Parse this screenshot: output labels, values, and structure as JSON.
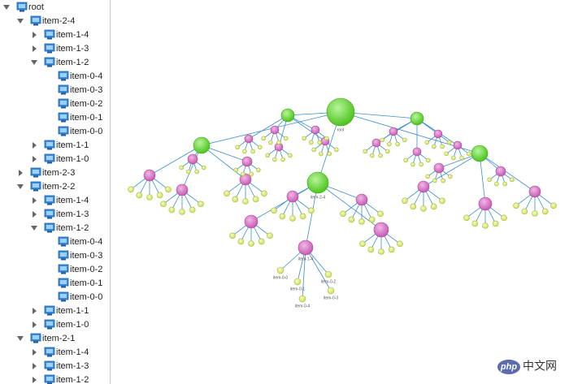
{
  "tree": {
    "rows": [
      {
        "label": "root",
        "level": 0,
        "state": "expanded"
      },
      {
        "label": "item-2-4",
        "level": 1,
        "state": "expanded"
      },
      {
        "label": "item-1-4",
        "level": 2,
        "state": "collapsed"
      },
      {
        "label": "item-1-3",
        "level": 2,
        "state": "collapsed"
      },
      {
        "label": "item-1-2",
        "level": 2,
        "state": "expanded"
      },
      {
        "label": "item-0-4",
        "level": 3,
        "state": "leaf"
      },
      {
        "label": "item-0-3",
        "level": 3,
        "state": "leaf"
      },
      {
        "label": "item-0-2",
        "level": 3,
        "state": "leaf"
      },
      {
        "label": "item-0-1",
        "level": 3,
        "state": "leaf"
      },
      {
        "label": "item-0-0",
        "level": 3,
        "state": "leaf"
      },
      {
        "label": "item-1-1",
        "level": 2,
        "state": "collapsed"
      },
      {
        "label": "item-1-0",
        "level": 2,
        "state": "collapsed"
      },
      {
        "label": "item-2-3",
        "level": 1,
        "state": "collapsed"
      },
      {
        "label": "item-2-2",
        "level": 1,
        "state": "expanded"
      },
      {
        "label": "item-1-4",
        "level": 2,
        "state": "collapsed"
      },
      {
        "label": "item-1-3",
        "level": 2,
        "state": "collapsed"
      },
      {
        "label": "item-1-2",
        "level": 2,
        "state": "expanded"
      },
      {
        "label": "item-0-4",
        "level": 3,
        "state": "leaf"
      },
      {
        "label": "item-0-3",
        "level": 3,
        "state": "leaf"
      },
      {
        "label": "item-0-2",
        "level": 3,
        "state": "leaf"
      },
      {
        "label": "item-0-1",
        "level": 3,
        "state": "leaf"
      },
      {
        "label": "item-0-0",
        "level": 3,
        "state": "leaf"
      },
      {
        "label": "item-1-1",
        "level": 2,
        "state": "collapsed"
      },
      {
        "label": "item-1-0",
        "level": 2,
        "state": "collapsed"
      },
      {
        "label": "item-2-1",
        "level": 1,
        "state": "expanded"
      },
      {
        "label": "item-1-4",
        "level": 2,
        "state": "collapsed"
      },
      {
        "label": "item-1-3",
        "level": 2,
        "state": "collapsed"
      },
      {
        "label": "item-1-2",
        "level": 2,
        "state": "collapsed"
      }
    ]
  },
  "graph": {
    "labels": [
      "root",
      "item-2-4",
      "item-1-4",
      "item-0-0",
      "item-0-1",
      "item-0-2",
      "item-0-3",
      "item-0-4"
    ]
  },
  "watermark": {
    "logo": "php",
    "text": "中文网"
  }
}
